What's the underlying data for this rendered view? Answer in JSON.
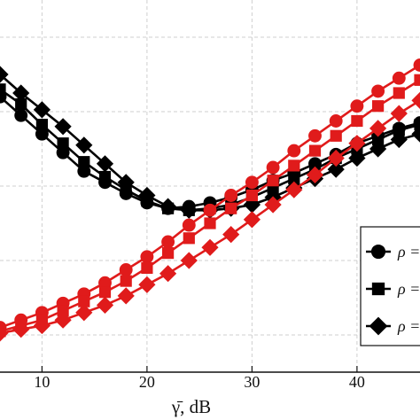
{
  "chart_data": {
    "type": "line",
    "xlabel": "γ̄, dB",
    "xlim": [
      6,
      46
    ],
    "ylim": [
      0,
      1
    ],
    "x_ticks": [
      "10",
      "20",
      "30",
      "40"
    ],
    "x_tick_values": [
      10,
      20,
      30,
      40
    ],
    "y_gridlines": [
      0.1,
      0.3,
      0.5,
      0.7,
      0.9
    ],
    "grid": true,
    "colors": {
      "black": "#000000",
      "red": "#e01b1b"
    },
    "legend": {
      "placement": "right-bottom",
      "entries": [
        {
          "marker": "circle",
          "label": "ρ ="
        },
        {
          "marker": "square",
          "label": "ρ ="
        },
        {
          "marker": "diamond",
          "label": "ρ ="
        }
      ]
    },
    "series": [
      {
        "color": "black",
        "marker": "circle",
        "x": [
          6,
          8,
          10,
          12,
          14,
          16,
          18,
          20,
          22,
          24,
          26,
          28,
          30,
          32,
          34,
          36,
          38,
          40,
          42,
          44,
          46
        ],
        "y": [
          0.74,
          0.69,
          0.64,
          0.59,
          0.54,
          0.51,
          0.48,
          0.455,
          0.44,
          0.445,
          0.455,
          0.47,
          0.49,
          0.515,
          0.535,
          0.56,
          0.585,
          0.615,
          0.635,
          0.655,
          0.67
        ]
      },
      {
        "color": "black",
        "marker": "square",
        "x": [
          6,
          8,
          10,
          12,
          14,
          16,
          18,
          20,
          22,
          24,
          26,
          28,
          30,
          32,
          34,
          36,
          38,
          40,
          42,
          44,
          46
        ],
        "y": [
          0.76,
          0.72,
          0.665,
          0.615,
          0.565,
          0.525,
          0.49,
          0.46,
          0.44,
          0.435,
          0.44,
          0.45,
          0.47,
          0.495,
          0.52,
          0.545,
          0.575,
          0.6,
          0.625,
          0.65,
          0.665
        ]
      },
      {
        "color": "black",
        "marker": "diamond",
        "x": [
          6,
          8,
          10,
          12,
          14,
          16,
          18,
          20,
          22,
          24,
          26,
          28,
          30,
          32,
          34,
          36,
          38,
          40,
          42,
          44,
          46
        ],
        "y": [
          0.8,
          0.75,
          0.705,
          0.66,
          0.61,
          0.56,
          0.51,
          0.475,
          0.445,
          0.435,
          0.435,
          0.44,
          0.45,
          0.47,
          0.495,
          0.52,
          0.545,
          0.575,
          0.6,
          0.625,
          0.64
        ]
      },
      {
        "color": "red",
        "marker": "circle",
        "x": [
          6,
          8,
          10,
          12,
          14,
          16,
          18,
          20,
          22,
          24,
          26,
          28,
          30,
          32,
          34,
          36,
          38,
          40,
          42,
          44,
          46
        ],
        "y": [
          0.12,
          0.14,
          0.16,
          0.185,
          0.21,
          0.24,
          0.275,
          0.31,
          0.35,
          0.395,
          0.435,
          0.475,
          0.51,
          0.55,
          0.595,
          0.635,
          0.675,
          0.715,
          0.755,
          0.79,
          0.825
        ]
      },
      {
        "color": "red",
        "marker": "square",
        "x": [
          6,
          8,
          10,
          12,
          14,
          16,
          18,
          20,
          22,
          24,
          26,
          28,
          30,
          32,
          34,
          36,
          38,
          40,
          42,
          44,
          46
        ],
        "y": [
          0.11,
          0.125,
          0.14,
          0.165,
          0.19,
          0.215,
          0.245,
          0.28,
          0.32,
          0.36,
          0.4,
          0.44,
          0.475,
          0.515,
          0.555,
          0.595,
          0.635,
          0.675,
          0.715,
          0.75,
          0.785
        ]
      },
      {
        "color": "red",
        "marker": "diamond",
        "x": [
          6,
          8,
          10,
          12,
          14,
          16,
          18,
          20,
          22,
          24,
          26,
          28,
          30,
          32,
          34,
          36,
          38,
          40,
          42,
          44,
          46
        ],
        "y": [
          0.105,
          0.115,
          0.125,
          0.14,
          0.16,
          0.18,
          0.205,
          0.235,
          0.265,
          0.3,
          0.335,
          0.37,
          0.41,
          0.45,
          0.49,
          0.53,
          0.575,
          0.615,
          0.655,
          0.695,
          0.73
        ]
      }
    ]
  }
}
